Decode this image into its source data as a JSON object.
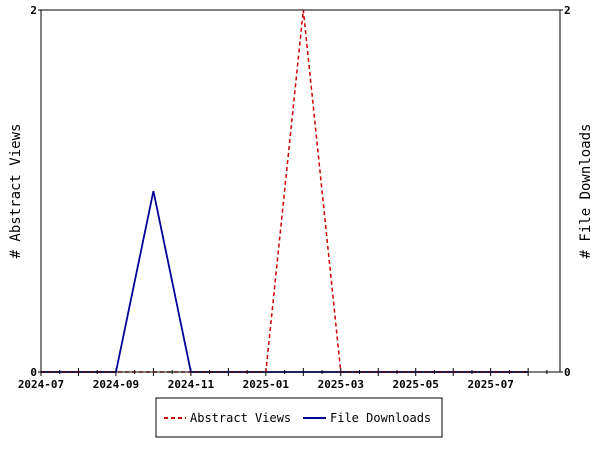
{
  "chart_data": {
    "type": "line",
    "title": "",
    "xlabel": "",
    "ylabel_left": "# Abstract Views",
    "ylabel_right": "# File Downloads",
    "x": [
      "2024-07",
      "2024-08",
      "2024-09",
      "2024-10",
      "2024-11",
      "2024-12",
      "2025-01",
      "2025-02",
      "2025-03",
      "2025-04",
      "2025-05",
      "2025-06",
      "2025-07",
      "2025-08"
    ],
    "x_tick_labels": [
      "2024-07",
      "2024-09",
      "2024-11",
      "2025-01",
      "2025-03",
      "2025-05",
      "2025-07"
    ],
    "ylim_left": [
      0,
      2
    ],
    "ylim_right": [
      0,
      2
    ],
    "y_tick_labels_left": [
      "0",
      "2"
    ],
    "y_tick_labels_right": [
      "0",
      "2"
    ],
    "grid": false,
    "legend_position": "bottom-center",
    "series": [
      {
        "name": "Abstract Views",
        "axis": "left",
        "color": "#cc0000",
        "dash": "dashed",
        "values": [
          0,
          0,
          0,
          0,
          0,
          0,
          0,
          2,
          0,
          0,
          0,
          0,
          0,
          0
        ]
      },
      {
        "name": "File Downloads",
        "axis": "right",
        "color": "#000099",
        "dash": "solid",
        "values": [
          0,
          0,
          0,
          1,
          0,
          0,
          0,
          0,
          0,
          0,
          0,
          0,
          0,
          0
        ]
      }
    ]
  }
}
